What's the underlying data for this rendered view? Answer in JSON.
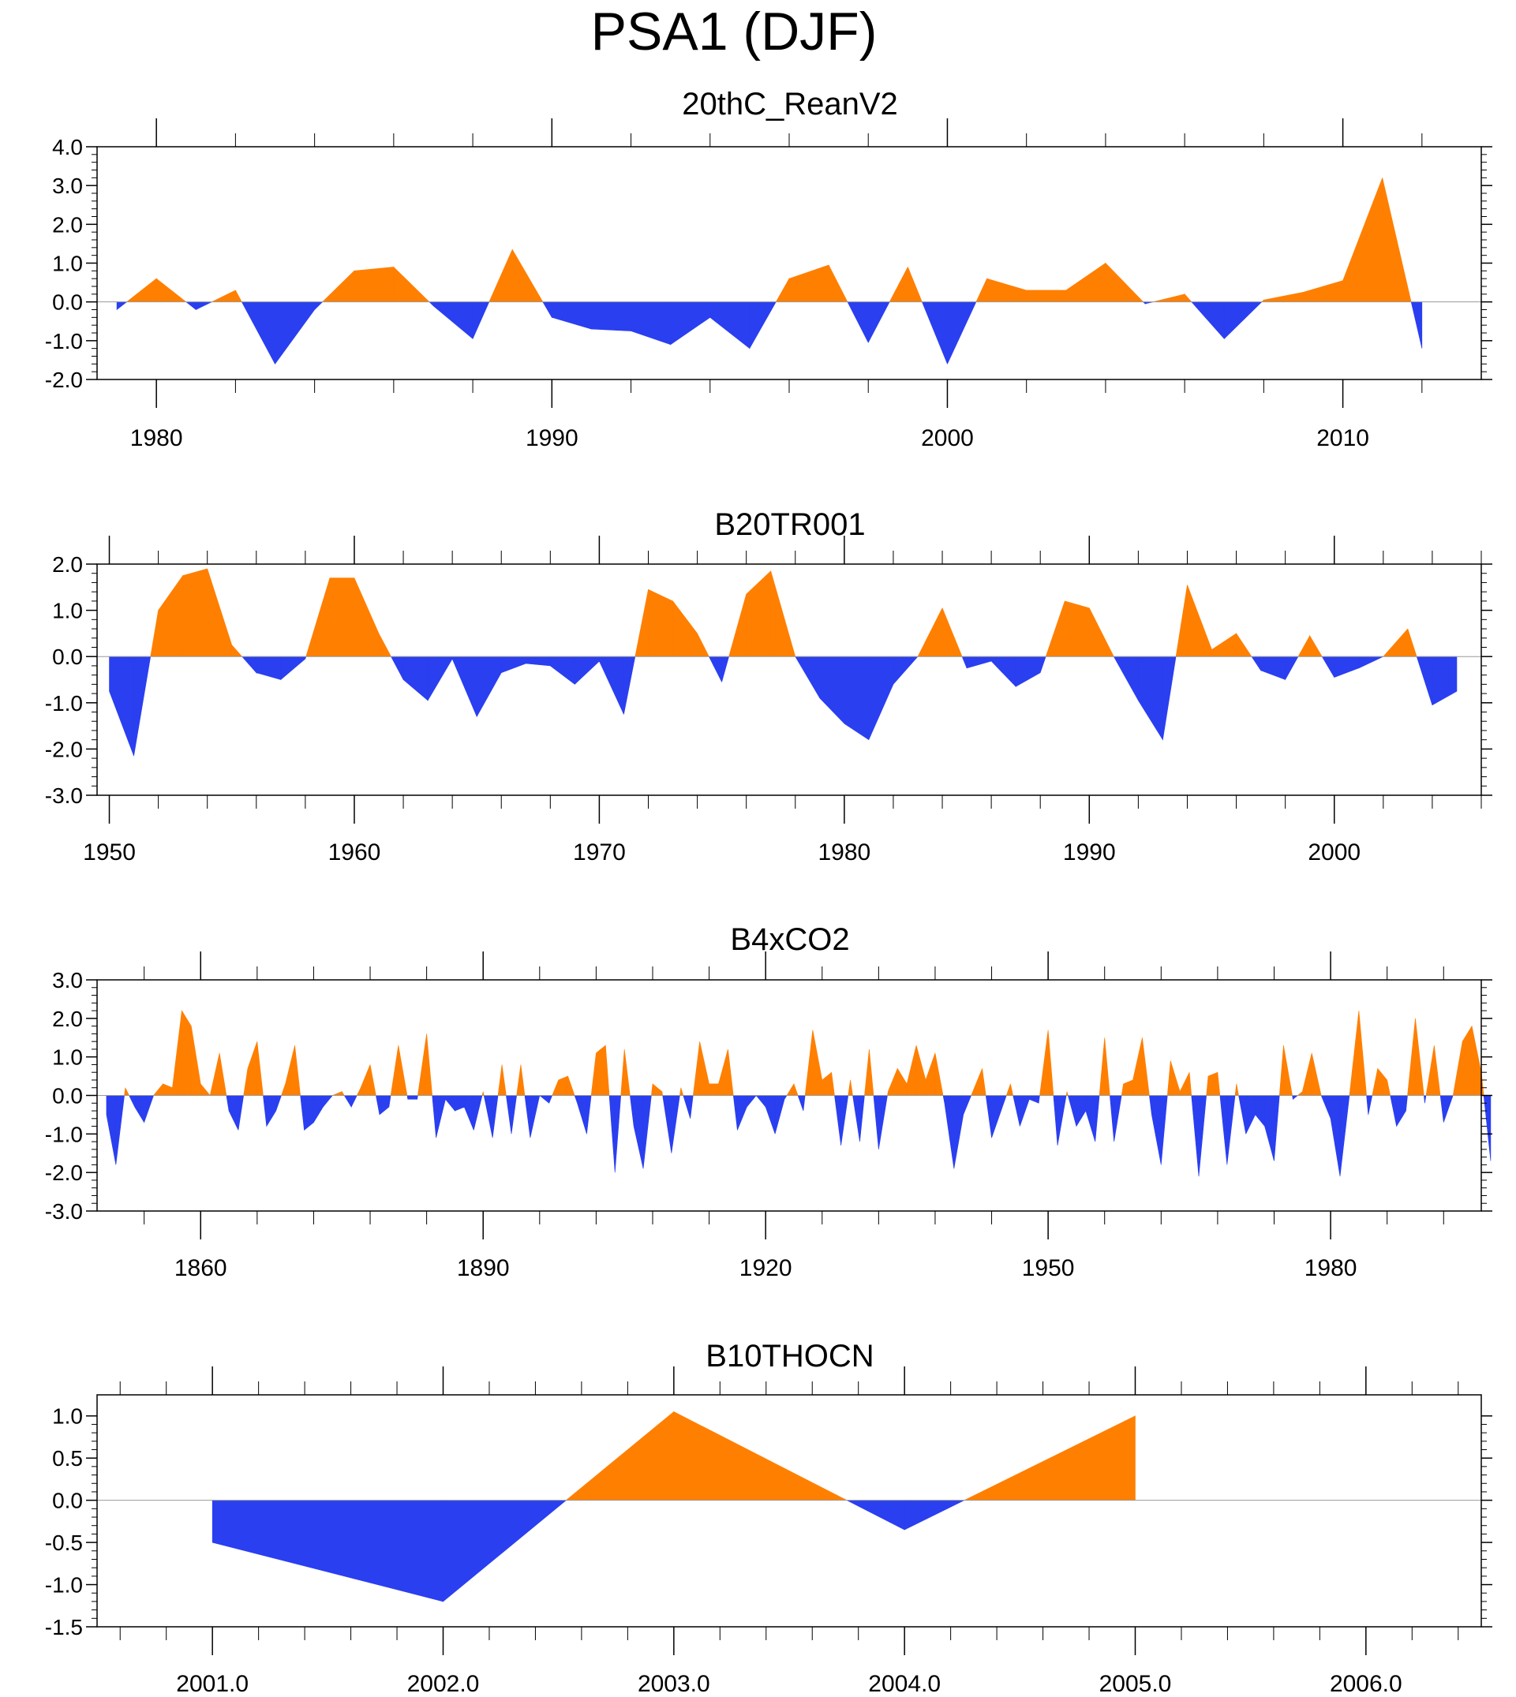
{
  "title": "PSA1 (DJF)",
  "colors": {
    "positive": "#ff7f00",
    "negative": "#2a3ff0",
    "axis": "#000000",
    "zeroline": "#999999"
  },
  "chart_data": [
    {
      "type": "area",
      "title": "20thC_ReanV2",
      "xlim": [
        1978.5,
        2013.5
      ],
      "ylim": [
        -2.0,
        4.0
      ],
      "yticks": [
        -2.0,
        -1.0,
        0.0,
        1.0,
        2.0,
        3.0,
        4.0
      ],
      "ytick_labels": [
        "-2.0",
        "-1.0",
        "0.0",
        "1.0",
        "2.0",
        "3.0",
        "4.0"
      ],
      "xticks": [
        1980,
        1990,
        2000,
        2010
      ],
      "xtick_labels": [
        "1980",
        "1990",
        "2000",
        "2010"
      ],
      "x": [
        1979,
        1980,
        1981,
        1982,
        1983,
        1984,
        1985,
        1986,
        1987,
        1988,
        1989,
        1990,
        1991,
        1992,
        1993,
        1994,
        1995,
        1996,
        1997,
        1998,
        1999,
        2000,
        2001,
        2002,
        2003,
        2004,
        2005,
        2006,
        2007,
        2008,
        2009,
        2010,
        2011,
        2012
      ],
      "values": [
        -0.2,
        0.6,
        -0.2,
        0.3,
        -1.6,
        -0.2,
        0.8,
        0.9,
        -0.1,
        -0.95,
        1.35,
        -0.4,
        -0.7,
        -0.75,
        -1.1,
        -0.4,
        -1.2,
        0.6,
        0.95,
        -1.05,
        0.9,
        -1.6,
        0.6,
        0.3,
        0.3,
        1.0,
        -0.05,
        0.2,
        -0.95,
        0.05,
        0.25,
        0.55,
        3.2,
        -1.2
      ]
    },
    {
      "type": "area",
      "title": "B20TR001",
      "xlim": [
        1949.5,
        2006
      ],
      "ylim": [
        -3.0,
        2.0
      ],
      "yticks": [
        -3.0,
        -2.0,
        -1.0,
        0.0,
        1.0,
        2.0
      ],
      "ytick_labels": [
        "-3.0",
        "-2.0",
        "-1.0",
        "0.0",
        "1.0",
        "2.0"
      ],
      "xticks": [
        1950,
        1960,
        1970,
        1980,
        1990,
        2000
      ],
      "xtick_labels": [
        "1950",
        "1960",
        "1970",
        "1980",
        "1990",
        "2000"
      ],
      "x": [
        1950,
        1951,
        1952,
        1953,
        1954,
        1955,
        1956,
        1957,
        1958,
        1959,
        1960,
        1961,
        1962,
        1963,
        1964,
        1965,
        1966,
        1967,
        1968,
        1969,
        1970,
        1971,
        1972,
        1973,
        1974,
        1975,
        1976,
        1977,
        1978,
        1979,
        1980,
        1981,
        1982,
        1983,
        1984,
        1985,
        1986,
        1987,
        1988,
        1989,
        1990,
        1991,
        1992,
        1993,
        1994,
        1995,
        1996,
        1997,
        1998,
        1999,
        2000,
        2001,
        2002,
        2003,
        2004,
        2005
      ],
      "values": [
        -0.75,
        -2.15,
        1.0,
        1.75,
        1.9,
        0.25,
        -0.35,
        -0.5,
        -0.05,
        1.7,
        1.7,
        0.5,
        -0.5,
        -0.95,
        -0.05,
        -1.3,
        -0.35,
        -0.15,
        -0.2,
        -0.6,
        -0.1,
        -1.25,
        1.45,
        1.2,
        0.5,
        -0.55,
        1.35,
        1.85,
        0.0,
        -0.9,
        -1.45,
        -1.8,
        -0.6,
        0.0,
        1.05,
        -0.25,
        -0.1,
        -0.65,
        -0.35,
        1.2,
        1.05,
        0.0,
        -0.95,
        -1.8,
        1.55,
        0.15,
        0.5,
        -0.3,
        -0.5,
        0.45,
        -0.45,
        -0.25,
        0.0,
        0.6,
        -1.05,
        -0.75
      ]
    },
    {
      "type": "area",
      "title": "B4xCO2",
      "xlim": [
        1849,
        1996
      ],
      "ylim": [
        -3.0,
        3.0
      ],
      "yticks": [
        -3.0,
        -2.0,
        -1.0,
        0.0,
        1.0,
        2.0,
        3.0
      ],
      "ytick_labels": [
        "-3.0",
        "-2.0",
        "-1.0",
        "0.0",
        "1.0",
        "2.0",
        "3.0"
      ],
      "xticks": [
        1860,
        1890,
        1920,
        1950,
        1980
      ],
      "xtick_labels": [
        "1860",
        "1890",
        "1920",
        "1950",
        "1980"
      ],
      "x_start": 1850,
      "values": [
        -0.5,
        -1.8,
        0.2,
        -0.3,
        -0.7,
        0.0,
        0.3,
        0.2,
        2.2,
        1.8,
        0.3,
        0.0,
        1.1,
        -0.4,
        -0.9,
        0.7,
        1.4,
        -0.8,
        -0.4,
        0.3,
        1.3,
        -0.9,
        -0.7,
        -0.3,
        0.0,
        0.1,
        -0.3,
        0.2,
        0.8,
        -0.5,
        -0.3,
        1.3,
        -0.1,
        -0.1,
        1.6,
        -1.1,
        -0.1,
        -0.4,
        -0.3,
        -0.9,
        0.1,
        -1.1,
        0.8,
        -1.0,
        0.8,
        -1.1,
        0.0,
        -0.2,
        0.4,
        0.5,
        -0.2,
        -1.0,
        1.1,
        1.3,
        -2.0,
        1.2,
        -0.8,
        -1.9,
        0.3,
        0.1,
        -1.5,
        0.2,
        -0.6,
        1.4,
        0.3,
        0.3,
        1.2,
        -0.9,
        -0.3,
        0.0,
        -0.3,
        -1.0,
        -0.1,
        0.3,
        -0.4,
        1.7,
        0.4,
        0.6,
        -1.3,
        0.4,
        -1.2,
        1.2,
        -1.4,
        0.1,
        0.7,
        0.3,
        1.3,
        0.4,
        1.1,
        -0.2,
        -1.9,
        -0.5,
        0.1,
        0.7,
        -1.1,
        -0.4,
        0.3,
        -0.8,
        -0.1,
        -0.2,
        1.7,
        -1.3,
        0.1,
        -0.8,
        -0.4,
        -1.2,
        1.5,
        -1.2,
        0.3,
        0.4,
        1.5,
        -0.5,
        -1.8,
        0.9,
        0.1,
        0.6,
        -2.1,
        0.5,
        0.6,
        -1.8,
        0.3,
        -1.0,
        -0.5,
        -0.8,
        -1.7,
        1.3,
        -0.1,
        0.1,
        1.1,
        0.0,
        -0.6,
        -2.1,
        0.0,
        2.2,
        -0.5,
        0.7,
        0.4,
        -0.8,
        -0.4,
        2.0,
        -0.2,
        1.3,
        -0.7,
        0.0,
        1.4,
        1.8,
        0.6,
        -1.7
      ]
    },
    {
      "type": "area",
      "title": "B10THOCN",
      "xlim": [
        2000.5,
        2006.5
      ],
      "ylim": [
        -1.5,
        1.25
      ],
      "yticks": [
        -1.5,
        -1.0,
        -0.5,
        0.0,
        0.5,
        1.0
      ],
      "ytick_labels": [
        "-1.5",
        "-1.0",
        "-0.5",
        "0.0",
        "0.5",
        "1.0"
      ],
      "xticks": [
        2001,
        2002,
        2003,
        2004,
        2005,
        2006
      ],
      "xtick_labels": [
        "2001.0",
        "2002.0",
        "2003.0",
        "2004.0",
        "2005.0",
        "2006.0"
      ],
      "x": [
        2001,
        2002,
        2003,
        2004,
        2005
      ],
      "values": [
        -0.5,
        -1.2,
        1.05,
        -0.35,
        1.0
      ]
    }
  ]
}
